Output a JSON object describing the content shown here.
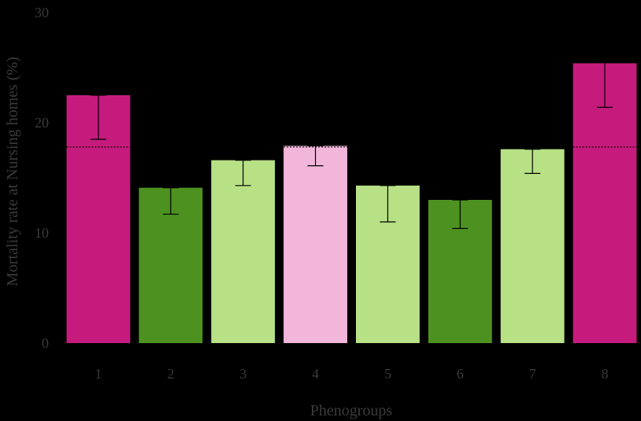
{
  "chart_data": {
    "type": "bar",
    "title": "",
    "xlabel": "Phenogroups",
    "ylabel": "Mortality rate at Nursing homes (%)",
    "ylim": [
      0,
      30
    ],
    "yticks": [
      0,
      10,
      20,
      30
    ],
    "grid": false,
    "legend": "none",
    "categories": [
      "1",
      "2",
      "3",
      "4",
      "5",
      "6",
      "7",
      "8"
    ],
    "values": [
      22.5,
      14.1,
      16.6,
      17.9,
      14.3,
      13.0,
      17.6,
      25.4
    ],
    "error_low": [
      18.5,
      11.7,
      14.3,
      16.1,
      11.0,
      10.4,
      15.4,
      21.4
    ],
    "error_high": [
      22.5,
      14.1,
      16.6,
      17.9,
      14.3,
      13.0,
      17.6,
      25.9
    ],
    "reference_value": 17.8,
    "bar_colors": [
      "#c51b7d",
      "#4d9221",
      "#b8e186",
      "#f1b6da",
      "#b8e186",
      "#4d9221",
      "#b8e186",
      "#c51b7d"
    ],
    "background": "#000000",
    "text_color": "#3a3a3a",
    "error_bar_color": "#000000",
    "reference_line_color": "#000000"
  }
}
